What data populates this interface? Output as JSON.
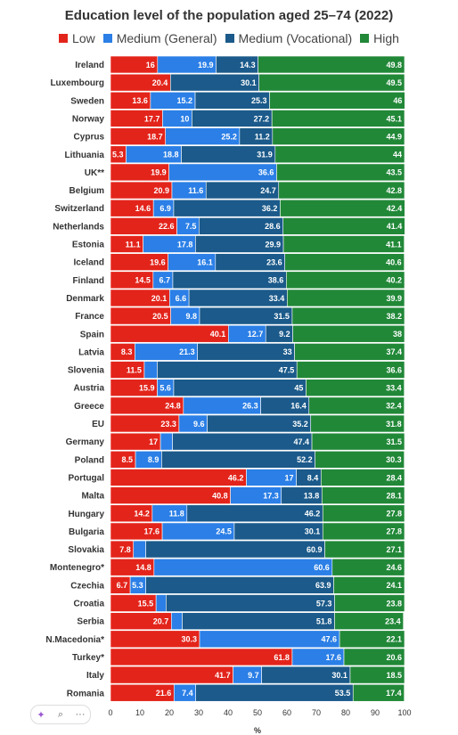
{
  "title": "Education level of the population aged 25–74 (2022)",
  "legend": [
    {
      "name": "Low",
      "color": "#e3241b"
    },
    {
      "name": "Medium (General)",
      "color": "#2b7fe6"
    },
    {
      "name": "Medium (Vocational)",
      "color": "#1b5a8a"
    },
    {
      "name": "High",
      "color": "#218838"
    }
  ],
  "xlabel": "%",
  "toolbar": {
    "sparkle_icon": "✦",
    "search_icon": "⌕",
    "more_icon": "···"
  },
  "chart_data": {
    "type": "bar",
    "orientation": "horizontal",
    "stacked": true,
    "title": "Education level of the population aged 25–74 (2022)",
    "xlabel": "%",
    "xlim": [
      0,
      100
    ],
    "xticks": [
      0,
      10,
      20,
      30,
      40,
      50,
      60,
      70,
      80,
      90,
      100
    ],
    "legend_position": "top",
    "categories": [
      "Ireland",
      "Luxembourg",
      "Sweden",
      "Norway",
      "Cyprus",
      "Lithuania",
      "UK**",
      "Belgium",
      "Switzerland",
      "Netherlands",
      "Estonia",
      "Iceland",
      "Finland",
      "Denmark",
      "France",
      "Spain",
      "Latvia",
      "Slovenia",
      "Austria",
      "Greece",
      "EU",
      "Germany",
      "Poland",
      "Portugal",
      "Malta",
      "Hungary",
      "Bulgaria",
      "Slovakia",
      "Montenegro*",
      "Czechia",
      "Croatia",
      "Serbia",
      "N.Macedonia*",
      "Turkey*",
      "Italy",
      "Romania"
    ],
    "series": [
      {
        "name": "Low",
        "color": "#e3241b",
        "values": [
          16,
          20.4,
          13.6,
          17.7,
          18.7,
          5.3,
          19.9,
          20.9,
          14.6,
          22.6,
          11.1,
          19.6,
          14.5,
          20.1,
          20.5,
          40.1,
          8.3,
          11.5,
          15.9,
          24.8,
          23.3,
          17,
          8.5,
          46.2,
          40.8,
          14.2,
          17.6,
          7.8,
          14.8,
          6.7,
          15.5,
          20.7,
          30.3,
          61.8,
          41.7,
          21.6
        ]
      },
      {
        "name": "Medium (General)",
        "color": "#2b7fe6",
        "values": [
          19.9,
          0,
          15.2,
          10,
          25.2,
          18.8,
          36.6,
          11.6,
          6.9,
          7.5,
          17.8,
          16.1,
          6.7,
          6.6,
          9.8,
          12.7,
          21.3,
          4.4,
          5.6,
          26.3,
          9.6,
          4.1,
          8.9,
          17,
          17.3,
          11.8,
          24.5,
          4.2,
          60.6,
          5.3,
          3.4,
          3.7,
          47.6,
          17.6,
          9.7,
          7.4
        ]
      },
      {
        "name": "Medium (Vocational)",
        "color": "#1b5a8a",
        "values": [
          14.3,
          30.1,
          25.3,
          27.2,
          11.2,
          31.9,
          0,
          24.7,
          36.2,
          28.6,
          29.9,
          23.6,
          38.6,
          33.4,
          31.5,
          9.2,
          33,
          47.5,
          45,
          16.4,
          35.2,
          47.4,
          52.2,
          8.4,
          13.8,
          46.2,
          30.1,
          60.9,
          0,
          63.9,
          57.3,
          51.8,
          0,
          0,
          30.1,
          53.5
        ]
      },
      {
        "name": "High",
        "color": "#218838",
        "values": [
          49.8,
          49.5,
          46,
          45.1,
          44.9,
          44,
          43.5,
          42.8,
          42.4,
          41.4,
          41.1,
          40.6,
          40.2,
          39.9,
          38.2,
          38,
          37.4,
          36.6,
          33.4,
          32.4,
          31.8,
          31.5,
          30.3,
          28.4,
          28.1,
          27.8,
          27.8,
          27.1,
          24.6,
          24.1,
          23.8,
          23.4,
          22.1,
          20.6,
          18.5,
          17.4
        ]
      }
    ],
    "labels": [
      [
        "16",
        "19.9",
        "14.3",
        "49.8"
      ],
      [
        "20.4",
        "",
        "30.1",
        "49.5"
      ],
      [
        "13.6",
        "15.2",
        "25.3",
        "46"
      ],
      [
        "17.7",
        "10",
        "27.2",
        "45.1"
      ],
      [
        "18.7",
        "25.2",
        "11.2",
        "44.9"
      ],
      [
        "5.3",
        "18.8",
        "31.9",
        "44"
      ],
      [
        "19.9",
        "36.6",
        "",
        "43.5"
      ],
      [
        "20.9",
        "11.6",
        "24.7",
        "42.8"
      ],
      [
        "14.6",
        "6.9",
        "36.2",
        "42.4"
      ],
      [
        "22.6",
        "7.5",
        "28.6",
        "41.4"
      ],
      [
        "11.1",
        "17.8",
        "29.9",
        "41.1"
      ],
      [
        "19.6",
        "16.1",
        "23.6",
        "40.6"
      ],
      [
        "14.5",
        "6.7",
        "38.6",
        "40.2"
      ],
      [
        "20.1",
        "6.6",
        "33.4",
        "39.9"
      ],
      [
        "20.5",
        "9.8",
        "31.5",
        "38.2"
      ],
      [
        "40.1",
        "12.7",
        "9.2",
        "38"
      ],
      [
        "8.3",
        "21.3",
        "33",
        "37.4"
      ],
      [
        "11.5",
        "",
        "47.5",
        "36.6"
      ],
      [
        "15.9",
        "5.6",
        "45",
        "33.4"
      ],
      [
        "24.8",
        "26.3",
        "16.4",
        "32.4"
      ],
      [
        "23.3",
        "9.6",
        "35.2",
        "31.8"
      ],
      [
        "17",
        "",
        "47.4",
        "31.5"
      ],
      [
        "8.5",
        "8.9",
        "52.2",
        "30.3"
      ],
      [
        "46.2",
        "17",
        "8.4",
        "28.4"
      ],
      [
        "40.8",
        "17.3",
        "13.8",
        "28.1"
      ],
      [
        "14.2",
        "11.8",
        "46.2",
        "27.8"
      ],
      [
        "17.6",
        "24.5",
        "30.1",
        "27.8"
      ],
      [
        "7.8",
        "",
        "60.9",
        "27.1"
      ],
      [
        "14.8",
        "60.6",
        "",
        "24.6"
      ],
      [
        "6.7",
        "5.3",
        "63.9",
        "24.1"
      ],
      [
        "15.5",
        "",
        "57.3",
        "23.8"
      ],
      [
        "20.7",
        "",
        "51.8",
        "23.4"
      ],
      [
        "30.3",
        "47.6",
        "",
        "22.1"
      ],
      [
        "61.8",
        "17.6",
        "",
        "20.6"
      ],
      [
        "41.7",
        "9.7",
        "30.1",
        "18.5"
      ],
      [
        "21.6",
        "7.4",
        "53.5",
        "17.4"
      ]
    ]
  }
}
